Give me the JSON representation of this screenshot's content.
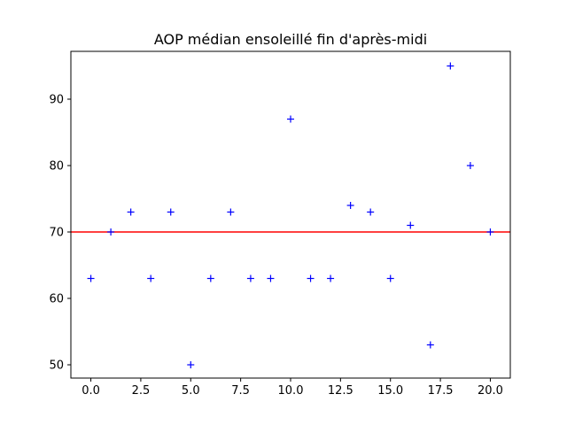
{
  "chart_data": {
    "type": "scatter",
    "title": "AOP médian ensoleillé fin d'après-midi",
    "xlabel": "",
    "ylabel": "",
    "xlim": [
      -1,
      21
    ],
    "ylim": [
      48,
      97.2
    ],
    "xticks": [
      0.0,
      2.5,
      5.0,
      7.5,
      10.0,
      12.5,
      15.0,
      17.5,
      20.0
    ],
    "xtick_labels": [
      "0.0",
      "2.5",
      "5.0",
      "7.5",
      "10.0",
      "12.5",
      "15.0",
      "17.5",
      "20.0"
    ],
    "yticks": [
      50,
      60,
      70,
      80,
      90
    ],
    "ytick_labels": [
      "50",
      "60",
      "70",
      "80",
      "90"
    ],
    "grid": false,
    "marker": "+",
    "marker_color": "#0000ff",
    "x": [
      0,
      1,
      2,
      3,
      4,
      5,
      6,
      7,
      8,
      9,
      10,
      11,
      12,
      13,
      14,
      15,
      16,
      17,
      18,
      19,
      20
    ],
    "y": [
      63,
      70,
      73,
      63,
      73,
      50,
      63,
      73,
      63,
      63,
      87,
      63,
      63,
      74,
      73,
      63,
      71,
      53,
      95,
      80,
      70
    ],
    "hline": {
      "y": 70,
      "color": "#ff0000"
    }
  }
}
